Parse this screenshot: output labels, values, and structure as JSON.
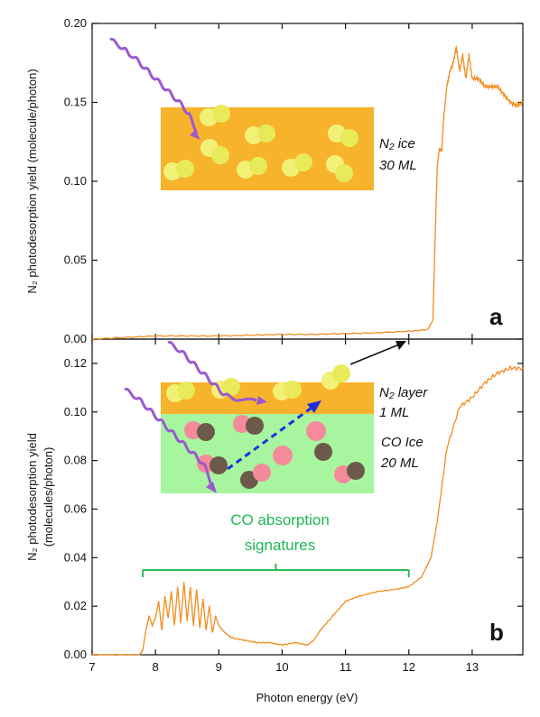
{
  "chart_data": [
    {
      "panel": "a",
      "type": "line",
      "xlabel": "",
      "ylabel": "N₂ photodesorption yield (molecule/photon)",
      "xlim": [
        7,
        13.8
      ],
      "ylim": [
        0,
        0.2
      ],
      "yticks": [
        "0.00",
        "0.05",
        "0.10",
        "0.15",
        "0.20"
      ],
      "series_color": "#f28c1e",
      "series": [
        {
          "x": [
            7.0,
            7.5,
            8.0,
            8.5,
            9.0,
            9.5,
            10.0,
            10.5,
            11.0,
            11.5,
            12.0,
            12.3,
            12.38,
            12.42,
            12.45,
            12.48,
            12.52,
            12.55,
            12.6,
            12.65,
            12.7,
            12.75,
            12.8,
            12.85,
            12.9,
            12.95,
            13.0,
            13.1,
            13.2,
            13.3,
            13.4,
            13.5,
            13.6,
            13.7,
            13.8
          ],
          "y": [
            0.0,
            0.001,
            0.002,
            0.002,
            0.002,
            0.0025,
            0.003,
            0.003,
            0.0035,
            0.004,
            0.005,
            0.006,
            0.012,
            0.07,
            0.11,
            0.12,
            0.12,
            0.14,
            0.16,
            0.17,
            0.175,
            0.185,
            0.17,
            0.18,
            0.165,
            0.18,
            0.165,
            0.165,
            0.16,
            0.16,
            0.16,
            0.155,
            0.15,
            0.148,
            0.15
          ]
        }
      ],
      "annotation": {
        "text_line1": "N₂ ice",
        "text_line2": "30 ML",
        "letter": "a"
      }
    },
    {
      "panel": "b",
      "type": "line",
      "xlabel": "Photon energy (eV)",
      "ylabel_line1": "N₂ photodesorption yield",
      "ylabel_line2": "(molecules/photon)",
      "xlim": [
        7,
        13.8
      ],
      "ylim": [
        0,
        0.13
      ],
      "xticks": [
        "7",
        "8",
        "9",
        "10",
        "11",
        "12",
        "13"
      ],
      "yticks": [
        "0.00",
        "0.02",
        "0.04",
        "0.06",
        "0.08",
        "0.10",
        "0.12"
      ],
      "series_color": "#f28c1e",
      "series": [
        {
          "x": [
            7.0,
            7.5,
            7.75,
            7.8,
            7.85,
            7.9,
            7.95,
            8.0,
            8.05,
            8.1,
            8.15,
            8.2,
            8.25,
            8.3,
            8.35,
            8.4,
            8.45,
            8.5,
            8.55,
            8.6,
            8.65,
            8.7,
            8.75,
            8.8,
            8.85,
            8.9,
            8.95,
            9.0,
            9.1,
            9.2,
            9.4,
            9.6,
            9.8,
            10.0,
            10.2,
            10.4,
            10.5,
            10.6,
            10.8,
            11.0,
            11.2,
            11.5,
            11.8,
            12.0,
            12.2,
            12.35,
            12.45,
            12.6,
            12.8,
            13.0,
            13.2,
            13.4,
            13.6,
            13.8
          ],
          "y": [
            0.0,
            0.0,
            0.0,
            0.002,
            0.01,
            0.016,
            0.012,
            0.015,
            0.022,
            0.01,
            0.024,
            0.015,
            0.026,
            0.012,
            0.028,
            0.013,
            0.03,
            0.014,
            0.028,
            0.012,
            0.027,
            0.011,
            0.023,
            0.01,
            0.02,
            0.009,
            0.016,
            0.012,
            0.009,
            0.007,
            0.006,
            0.005,
            0.005,
            0.004,
            0.005,
            0.004,
            0.006,
            0.01,
            0.016,
            0.022,
            0.024,
            0.026,
            0.027,
            0.028,
            0.032,
            0.04,
            0.055,
            0.085,
            0.102,
            0.106,
            0.112,
            0.116,
            0.118,
            0.118
          ]
        }
      ],
      "annotation": {
        "layer_line1": "N₂ layer",
        "layer_line2": "1 ML",
        "ice_line1": "CO Ice",
        "ice_line2": "20 ML",
        "co_line1": "CO absorption",
        "co_line2": "signatures",
        "bracket_range": [
          7.8,
          12.0
        ],
        "letter": "b"
      }
    }
  ],
  "colors": {
    "line": "#f28c1e",
    "ice": "#f7b32b",
    "co_layer": "#a8f5a0",
    "photon": "#9b59d0",
    "arrow": "#1f2ee0",
    "bracket": "#2dbb58"
  }
}
